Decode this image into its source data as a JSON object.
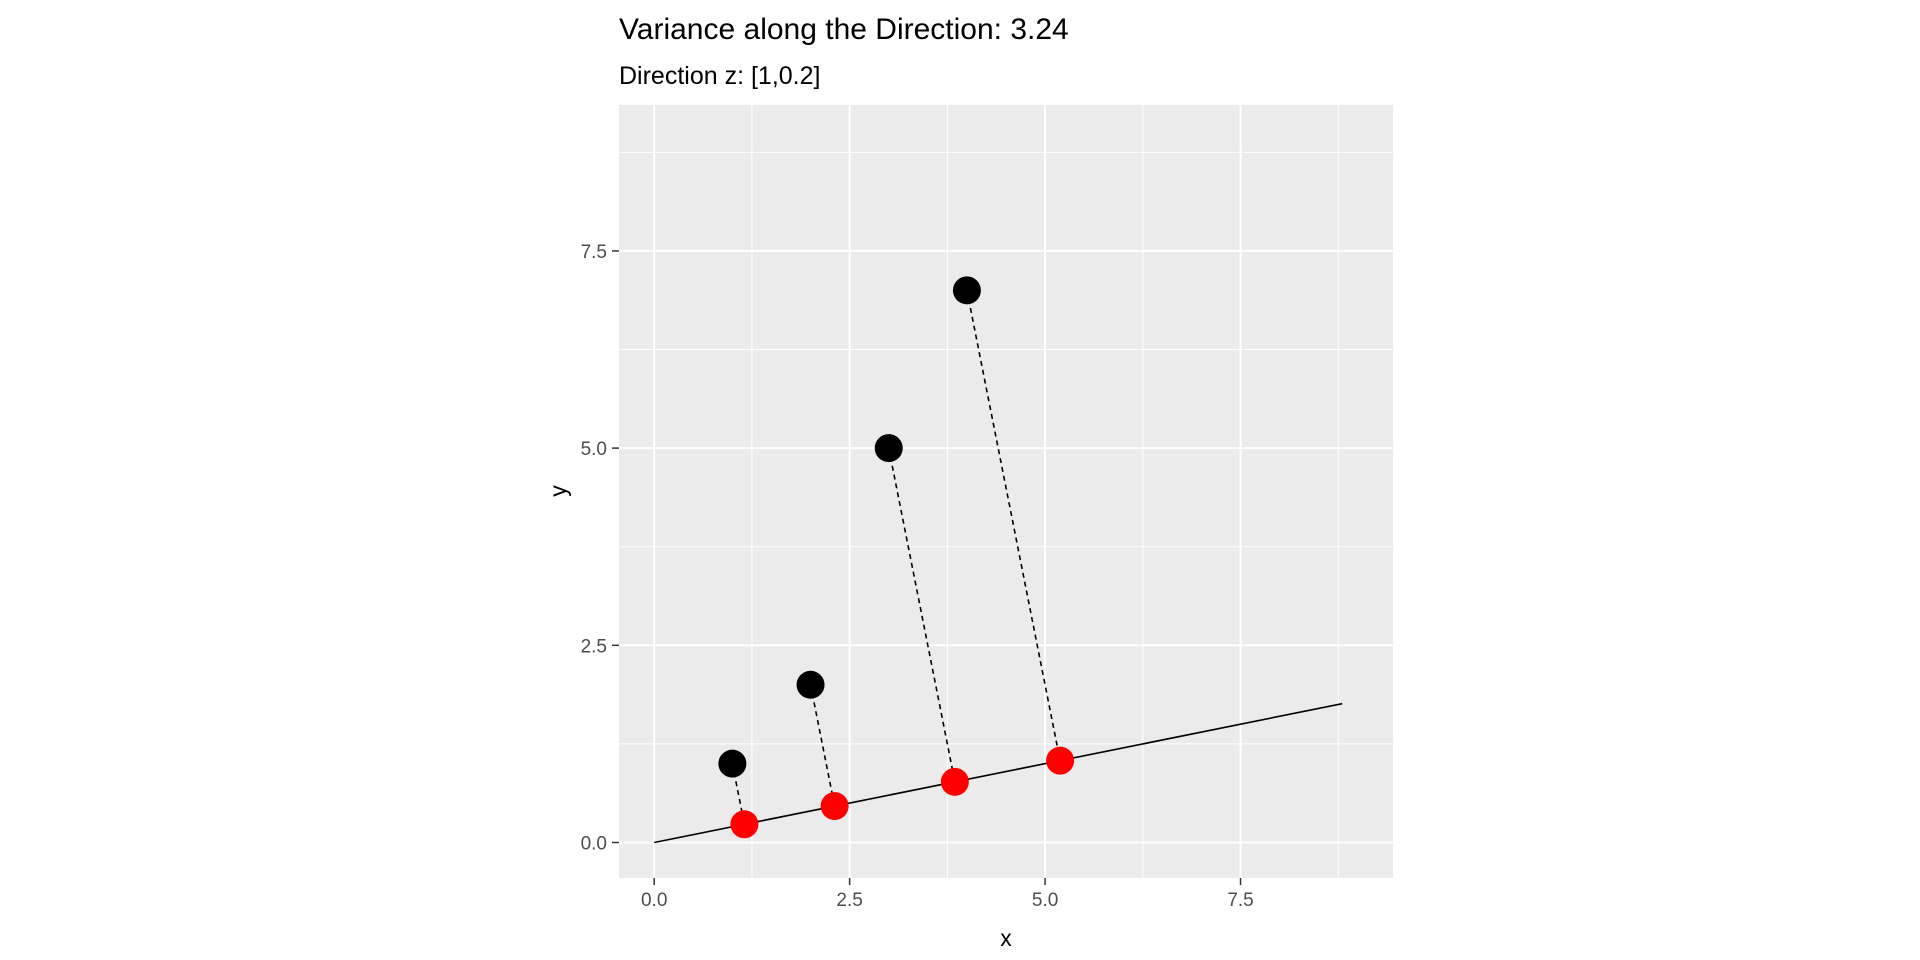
{
  "chart_data": {
    "type": "scatter",
    "title": "Variance along the Direction:  3.24",
    "subtitle": "Direction z: [1,0.2]",
    "xlabel": "x",
    "ylabel": "y",
    "xlim": [
      -0.45,
      9.45
    ],
    "ylim": [
      -0.45,
      9.35
    ],
    "x_ticks": [
      "0.0",
      "2.5",
      "5.0",
      "7.5"
    ],
    "x_tick_values": [
      0,
      2.5,
      5,
      7.5
    ],
    "y_ticks": [
      "0.0",
      "2.5",
      "5.0",
      "7.5"
    ],
    "y_tick_values": [
      0,
      2.5,
      5,
      7.5
    ],
    "grid": true,
    "panel_background": "#ebebeb",
    "direction_line": {
      "x": [
        0,
        8.8
      ],
      "y": [
        0,
        1.76
      ],
      "color": "#000000"
    },
    "series": [
      {
        "color": "#000000",
        "points": [
          {
            "x": 1,
            "y": 1
          },
          {
            "x": 2,
            "y": 2
          },
          {
            "x": 3,
            "y": 5
          },
          {
            "x": 4,
            "y": 7
          }
        ]
      },
      {
        "color": "#ff0000",
        "points": [
          {
            "x": 1.154,
            "y": 0.231
          },
          {
            "x": 2.308,
            "y": 0.462
          },
          {
            "x": 3.846,
            "y": 0.769
          },
          {
            "x": 5.192,
            "y": 1.038
          }
        ]
      }
    ]
  }
}
